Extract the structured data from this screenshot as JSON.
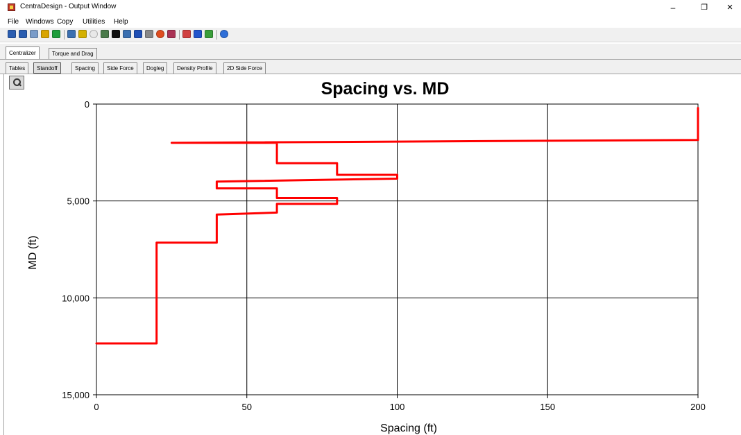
{
  "window": {
    "title": "CentraDesign - Output Window",
    "minimize": "–",
    "restore": "❐",
    "close": "×"
  },
  "menu": [
    "File",
    "Windows",
    "Copy",
    "Utilities",
    "Help"
  ],
  "toolbar": {
    "icons": [
      "open-icon",
      "save-icon",
      "copy-icon",
      "export-icon",
      "print-icon",
      "chart-icon",
      "well-icon",
      "circle-icon",
      "grid-icon",
      "black-square-icon",
      "bar-chart-icon",
      "blue-chart-icon",
      "gray-chart-icon",
      "color-wheel-icon",
      "tools-icon",
      "config-icon",
      "monitor-icon",
      "map-icon",
      "help-icon"
    ],
    "colors": [
      "#2a5db0",
      "#2a5db0",
      "#7a9cc9",
      "#d9a400",
      "#1e9e3c",
      "#3a6fb0",
      "#d4b000",
      "#e8e8e8",
      "#4a7a4a",
      "#111111",
      "#3a6fb0",
      "#1f4fb5",
      "#888888",
      "#e04d1f",
      "#aa3355",
      "#d04040",
      "#2255cc",
      "#3a9e3a",
      "#2f6fd8"
    ]
  },
  "tabs_primary": [
    {
      "label": "Centralizer",
      "active": true
    },
    {
      "label": "Torque and Drag",
      "active": false
    }
  ],
  "tabs_secondary": [
    {
      "label": "Tables",
      "active": false
    },
    {
      "label": "Standoff",
      "active": true
    },
    {
      "label": "Spacing",
      "active": false
    },
    {
      "label": "Side Force",
      "active": false
    },
    {
      "label": "Dogleg",
      "active": false
    },
    {
      "label": "Density Profile",
      "active": false
    },
    {
      "label": "2D Side Force",
      "active": false
    }
  ],
  "chart_data": {
    "type": "line",
    "title": "Spacing vs. MD",
    "xlabel": "Spacing (ft)",
    "ylabel": "MD (ft)",
    "xlim": [
      0,
      200
    ],
    "ylim": [
      15000,
      0
    ],
    "x_ticks": [
      0,
      50,
      100,
      150,
      200
    ],
    "x_tick_labels": [
      "0",
      "50",
      "100",
      "150",
      "200"
    ],
    "y_ticks": [
      0,
      5000,
      10000,
      15000
    ],
    "y_tick_labels": [
      "0",
      "5,000",
      "10,000",
      "15,000"
    ],
    "grid": true,
    "line_color": "#ff0000",
    "series": [
      {
        "points": [
          [
            200,
            200
          ],
          [
            200,
            1850
          ],
          [
            25,
            2000
          ],
          [
            60,
            2000
          ],
          [
            60,
            3050
          ],
          [
            80,
            3050
          ],
          [
            80,
            3650
          ],
          [
            100,
            3650
          ],
          [
            100,
            3850
          ],
          [
            40,
            4000
          ],
          [
            40,
            4350
          ],
          [
            60,
            4350
          ],
          [
            60,
            4850
          ],
          [
            80,
            4850
          ],
          [
            80,
            5150
          ],
          [
            60,
            5150
          ],
          [
            60,
            5600
          ],
          [
            40,
            5700
          ],
          [
            40,
            7150
          ],
          [
            20,
            7150
          ],
          [
            20,
            12350
          ],
          [
            0,
            12350
          ]
        ]
      }
    ]
  }
}
